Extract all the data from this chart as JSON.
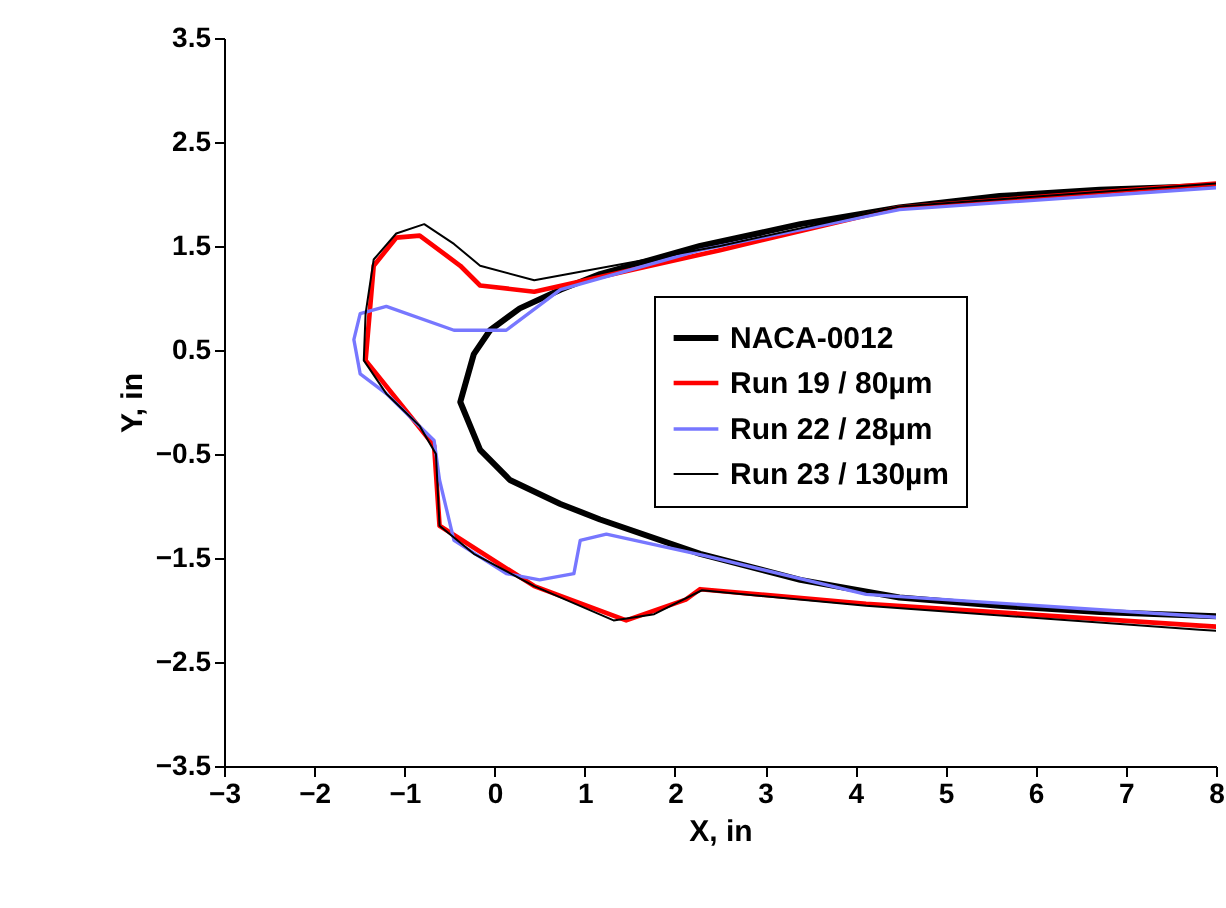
{
  "chart_data": {
    "type": "line",
    "xlabel": "X, in",
    "ylabel": "Y, in",
    "xlim": [
      -3,
      8
    ],
    "xticks": [
      -3,
      -2,
      -1,
      0,
      1,
      2,
      3,
      4,
      5,
      6,
      7,
      8
    ],
    "ylim": [
      -3.5,
      3.5
    ],
    "yticks": [
      -3.5,
      -2.5,
      -1.5,
      -0.5,
      0.5,
      1.5,
      2.5,
      3.5
    ],
    "grid": false,
    "legend": "right",
    "marker": "none",
    "series": [
      {
        "name": "NACA-0012",
        "color": "#000000",
        "x": [
          8,
          6.71,
          5.6,
          4.49,
          3.39,
          2.28,
          1.17,
          0.73,
          0.28,
          -0.05,
          -0.23,
          -0.38,
          -0.16,
          0.17,
          0.73,
          1.17,
          2.28,
          3.39,
          4.49,
          5.6,
          6.71,
          8
        ],
        "values": [
          2.08,
          2.04,
          1.98,
          1.87,
          1.71,
          1.5,
          1.23,
          1.08,
          0.9,
          0.69,
          0.46,
          0,
          -0.46,
          -0.75,
          -0.98,
          -1.13,
          -1.46,
          -1.71,
          -1.88,
          -1.96,
          -2.02,
          -2.06
        ]
      },
      {
        "name": "Run 19 / 80µm",
        "color": "#ff0000",
        "x": [
          8,
          4.49,
          2.5,
          0.44,
          -0.16,
          -0.38,
          -0.83,
          -1.09,
          -1.34,
          -1.43,
          -0.67,
          -0.61,
          0.44,
          1.46,
          2.12,
          2.28,
          4.12,
          7.82,
          8
        ],
        "values": [
          2.1,
          1.87,
          1.46,
          1.06,
          1.12,
          1.31,
          1.6,
          1.58,
          1.31,
          0.4,
          -0.42,
          -1.19,
          -1.77,
          -2.1,
          -1.9,
          -1.8,
          -1.94,
          -2.15,
          -2.16
        ]
      },
      {
        "name": "Run 22 / 28µm",
        "color": "#7777ff",
        "x": [
          8,
          4.49,
          2.28,
          0.73,
          0.13,
          -0.45,
          -1.2,
          -1.49,
          -1.56,
          -1.49,
          -1.2,
          -0.67,
          -0.61,
          -0.45,
          0.13,
          0.5,
          0.88,
          0.95,
          1.24,
          2.34,
          4.12,
          7.82,
          8
        ],
        "values": [
          2.06,
          1.85,
          1.46,
          1.08,
          0.69,
          0.69,
          0.92,
          0.85,
          0.6,
          0.27,
          0.08,
          -0.37,
          -0.75,
          -1.33,
          -1.65,
          -1.71,
          -1.65,
          -1.33,
          -1.27,
          -1.48,
          -1.85,
          -2.06,
          -2.07
        ]
      },
      {
        "name": "Run 23 / 130µm",
        "color": "#000000",
        "x": [
          8,
          4.49,
          2.5,
          0.44,
          -0.16,
          -0.45,
          -0.78,
          -1.09,
          -1.34,
          -1.43,
          -1.45,
          -1.2,
          -0.83,
          -0.65,
          -0.61,
          -0.23,
          0.44,
          1.32,
          1.77,
          2.3,
          4.12,
          7.82,
          8
        ],
        "values": [
          2.1,
          1.88,
          1.5,
          1.17,
          1.31,
          1.52,
          1.71,
          1.62,
          1.37,
          0.85,
          0.4,
          0.08,
          -0.23,
          -0.5,
          -1.19,
          -1.46,
          -1.77,
          -2.1,
          -2.04,
          -1.81,
          -1.96,
          -2.19,
          -2.2
        ]
      }
    ]
  }
}
